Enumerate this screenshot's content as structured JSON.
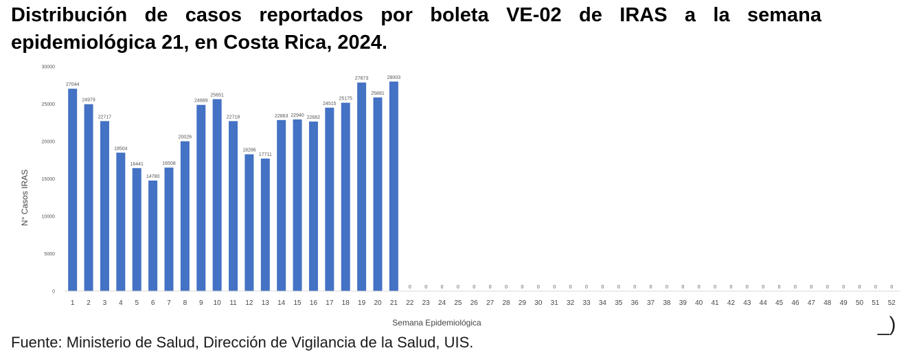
{
  "title": "Distribución de casos reportados por boleta VE-02 de IRAS a la semana epidemiológica 21, en Costa Rica, 2024.",
  "source": "Fuente: Ministerio de Salud, Dirección de Vigilancia de la Salud, UIS.",
  "corner_mark": "_)",
  "chart_data": {
    "type": "bar",
    "title": "",
    "xlabel": "Semana Epidemiológica",
    "ylabel": "N° Casos IRAS",
    "ylim": [
      0,
      30000
    ],
    "yticks": [
      0,
      5000,
      10000,
      15000,
      20000,
      25000,
      30000
    ],
    "grid": false,
    "bar_color": "#4472c4",
    "categories": [
      "1",
      "2",
      "3",
      "4",
      "5",
      "6",
      "7",
      "8",
      "9",
      "10",
      "11",
      "12",
      "13",
      "14",
      "15",
      "16",
      "17",
      "18",
      "19",
      "20",
      "21",
      "22",
      "23",
      "24",
      "25",
      "26",
      "27",
      "28",
      "29",
      "30",
      "31",
      "32",
      "33",
      "34",
      "35",
      "36",
      "37",
      "38",
      "39",
      "40",
      "41",
      "42",
      "43",
      "44",
      "45",
      "46",
      "47",
      "48",
      "49",
      "50",
      "51",
      "52"
    ],
    "values": [
      27044,
      24979,
      22717,
      18504,
      16441,
      14780,
      16508,
      20026,
      24889,
      25651,
      22718,
      18286,
      17711,
      22863,
      22940,
      22662,
      24515,
      25175,
      27873,
      25881,
      28003,
      0,
      0,
      0,
      0,
      0,
      0,
      0,
      0,
      0,
      0,
      0,
      0,
      0,
      0,
      0,
      0,
      0,
      0,
      0,
      0,
      0,
      0,
      0,
      0,
      0,
      0,
      0,
      0,
      0,
      0,
      0
    ]
  }
}
